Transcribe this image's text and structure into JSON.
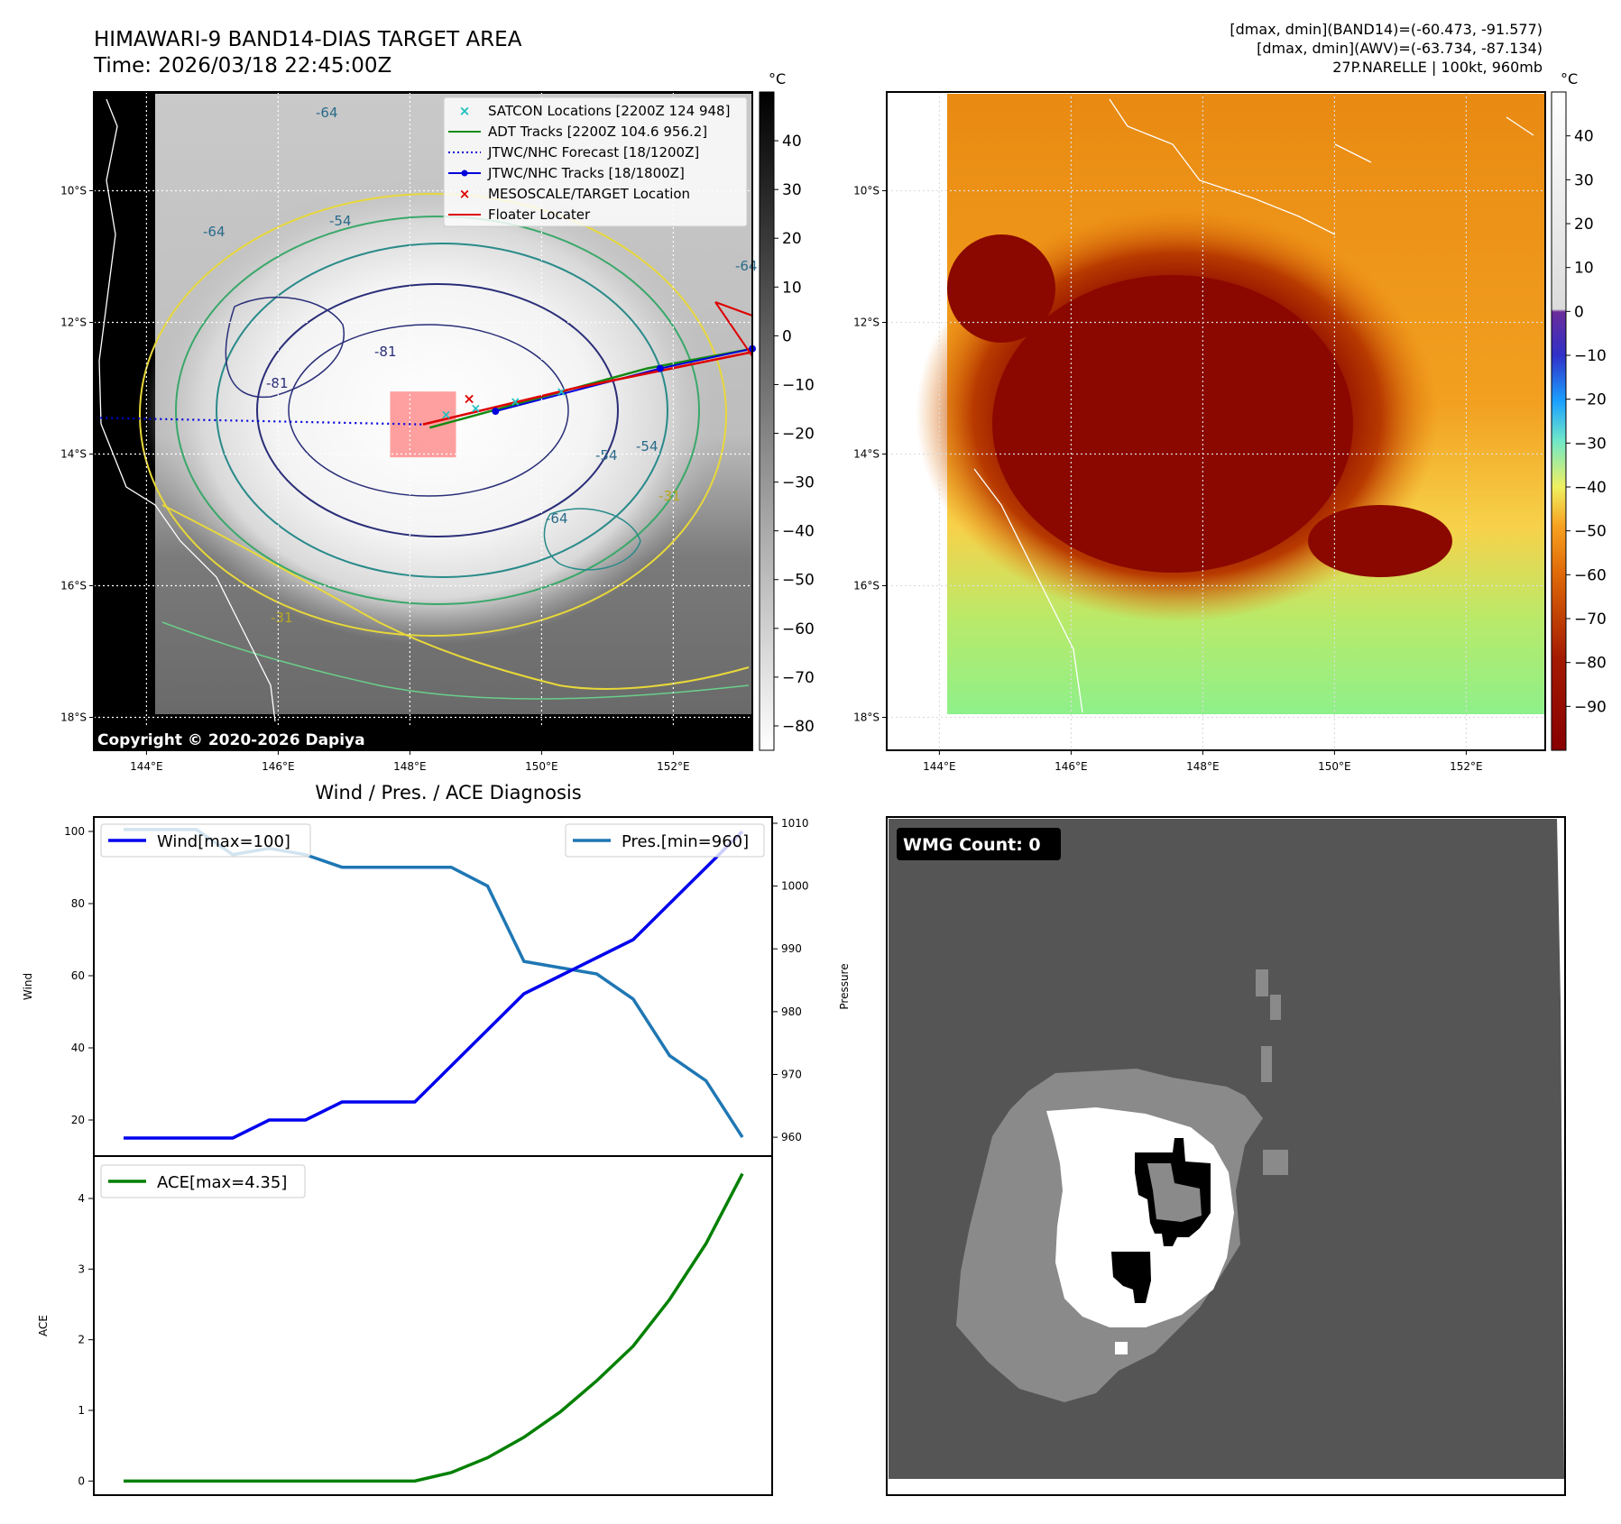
{
  "header": {
    "title_line1": "HIMAWARI-9 BAND14-DIAS TARGET AREA",
    "title_line2": "Time: 2026/03/18 22:45:00Z",
    "right_line1": "[dmax, dmin](BAND14)=(-60.473, -91.577)",
    "right_line2": "[dmax, dmin](AWV)=(-63.734, -87.134)",
    "right_line3": "27P.NARELLE | 100kt, 960mb"
  },
  "copyright": "Copyright © 2020-2026 Dapiya",
  "map_axes": {
    "lon_ticks": [
      "144°E",
      "146°E",
      "148°E",
      "150°E",
      "152°E"
    ],
    "lon_values": [
      144,
      146,
      148,
      150,
      152
    ],
    "lat_ticks": [
      "10°S",
      "12°S",
      "14°S",
      "16°S",
      "18°S"
    ],
    "lat_values": [
      -10,
      -12,
      -14,
      -16,
      -18
    ],
    "lon_range": [
      143.2,
      153.2
    ],
    "lat_range": [
      -18.5,
      -8.5
    ]
  },
  "colorbar_gray": {
    "unit": "°C",
    "ticks": [
      "40",
      "30",
      "20",
      "10",
      "0",
      "−10",
      "−20",
      "−30",
      "−40",
      "−50",
      "−60",
      "−70",
      "−80"
    ],
    "tick_values": [
      40,
      30,
      20,
      10,
      0,
      -10,
      -20,
      -30,
      -40,
      -50,
      -60,
      -70,
      -80
    ],
    "range": [
      -85,
      50
    ]
  },
  "colorbar_color": {
    "unit": "°C",
    "ticks": [
      "40",
      "30",
      "20",
      "10",
      "0",
      "−10",
      "−20",
      "−30",
      "−40",
      "−50",
      "−60",
      "−70",
      "−80",
      "−90"
    ],
    "tick_values": [
      40,
      30,
      20,
      10,
      0,
      -10,
      -20,
      -30,
      -40,
      -50,
      -60,
      -70,
      -80,
      -90
    ],
    "range": [
      -100,
      50
    ]
  },
  "legend": [
    {
      "label": "SATCON Locations [2200Z 124 948]",
      "color": "#1bbfbf",
      "style": "x"
    },
    {
      "label": "ADT Tracks [2200Z 104.6 956.2]",
      "color": "#138a13",
      "style": "line"
    },
    {
      "label": "JTWC/NHC Forecast [18/1200Z]",
      "color": "#0000dd",
      "style": "dotted"
    },
    {
      "label": "JTWC/NHC Tracks [18/1800Z]",
      "color": "#0000dd",
      "style": "line-dot"
    },
    {
      "label": "MESOSCALE/TARGET Location",
      "color": "#dd0000",
      "style": "x"
    },
    {
      "label": "Floater Locater",
      "color": "#dd0000",
      "style": "line"
    }
  ],
  "contour_labels": [
    "-64",
    "-54",
    "-64",
    "-81",
    "-81",
    "-54",
    "-64",
    "-31",
    "-31",
    "-64",
    "-54"
  ],
  "storm": {
    "lon": 148.2,
    "lat": -13.6,
    "target_box": {
      "lon_min": 147.7,
      "lon_max": 148.7,
      "lat_min": -14.05,
      "lat_max": -13.05
    }
  },
  "tracks": {
    "jtwc_track": [
      [
        149.3,
        -13.35
      ],
      [
        151.8,
        -12.7
      ],
      [
        153.2,
        -12.4
      ]
    ],
    "adt_track": [
      [
        148.3,
        -13.6
      ],
      [
        150.5,
        -13.0
      ],
      [
        151.6,
        -12.7
      ],
      [
        153.2,
        -12.4
      ]
    ],
    "floater": [
      [
        148.2,
        -13.55
      ],
      [
        150.5,
        -13.0
      ],
      [
        153.2,
        -12.45
      ]
    ],
    "jtwc_forecast": [
      [
        143.3,
        -13.45
      ],
      [
        148.2,
        -13.55
      ]
    ],
    "satcon_points": [
      [
        148.55,
        -13.4
      ],
      [
        149.0,
        -13.3
      ],
      [
        149.6,
        -13.2
      ],
      [
        150.3,
        -13.05
      ]
    ],
    "target_marker": [
      148.9,
      -13.15
    ]
  },
  "diagnosis": {
    "title": "Wind / Pres. / ACE Diagnosis",
    "wind_ylabel": "Wind",
    "pres_ylabel": "Pressure",
    "ace_ylabel": "ACE",
    "wind_legend": "Wind[max=100]",
    "pres_legend": "Pres.[min=960]",
    "ace_legend": "ACE[max=4.35]",
    "wind_ticks": [
      "20",
      "40",
      "60",
      "80",
      "100"
    ],
    "pres_ticks": [
      "960",
      "970",
      "980",
      "990",
      "1000",
      "1010"
    ],
    "ace_ticks": [
      "0",
      "1",
      "2",
      "3",
      "4"
    ]
  },
  "chart_data": {
    "type": "line",
    "x": [
      0,
      1,
      2,
      3,
      4,
      5,
      6,
      7,
      8,
      9,
      10,
      11,
      12,
      13,
      14,
      15,
      16,
      17
    ],
    "series": [
      {
        "name": "Wind[max=100]",
        "axis": "wind",
        "color": "#0000ee",
        "values": [
          15,
          15,
          15,
          15,
          20,
          20,
          25,
          25,
          25,
          35,
          45,
          55,
          60,
          65,
          70,
          80,
          90,
          100
        ]
      },
      {
        "name": "Pres.[min=960]",
        "axis": "pressure",
        "color": "#1f77b4",
        "values": [
          1009,
          1009,
          1009,
          1005,
          1006,
          1005,
          1003,
          1003,
          1003,
          1003,
          1000,
          988,
          987,
          986,
          982,
          973,
          969,
          960
        ]
      },
      {
        "name": "ACE[max=4.35]",
        "axis": "ace",
        "color": "#008000",
        "values": [
          0,
          0,
          0,
          0,
          0,
          0,
          0,
          0,
          0,
          0.12,
          0.33,
          0.62,
          0.98,
          1.42,
          1.91,
          2.57,
          3.36,
          4.35
        ]
      }
    ],
    "wind_ylim": [
      10,
      104
    ],
    "pres_ylim": [
      957,
      1011
    ],
    "ace_ylim": [
      -0.2,
      4.6
    ]
  },
  "wmg": {
    "label": "WMG Count: 0"
  }
}
